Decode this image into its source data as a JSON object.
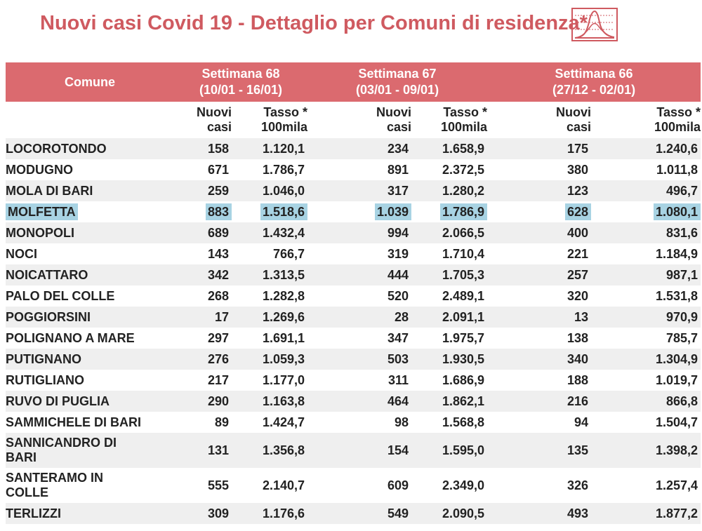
{
  "header": {
    "title": "Nuovi casi Covid 19 - Dettaglio per Comuni di residenza*",
    "icon": "epidemic-curve-chart-icon",
    "accent_color": "#db6a6f",
    "title_color": "#cf5a60"
  },
  "table": {
    "col_comune": "Comune",
    "weeks": [
      {
        "label": "Settimana 68",
        "range": "(10/01 - 16/01)"
      },
      {
        "label": "Settimana 67",
        "range": "(03/01 - 09/01)"
      },
      {
        "label": "Settimana 66",
        "range": "(27/12 - 02/01)"
      }
    ],
    "sub_headers": {
      "nuovi_1": "Nuovi",
      "nuovi_2": "casi",
      "tasso_1": "Tasso *",
      "tasso_2": "100mila"
    },
    "highlight_color": "#a8d3e3",
    "rows": [
      {
        "comune": "LOCOROTONDO",
        "w68_casi": "158",
        "w68_tasso": "1.120,1",
        "w67_casi": "234",
        "w67_tasso": "1.658,9",
        "w66_casi": "175",
        "w66_tasso": "1.240,6"
      },
      {
        "comune": "MODUGNO",
        "w68_casi": "671",
        "w68_tasso": "1.786,7",
        "w67_casi": "891",
        "w67_tasso": "2.372,5",
        "w66_casi": "380",
        "w66_tasso": "1.011,8"
      },
      {
        "comune": "MOLA DI BARI",
        "w68_casi": "259",
        "w68_tasso": "1.046,0",
        "w67_casi": "317",
        "w67_tasso": "1.280,2",
        "w66_casi": "123",
        "w66_tasso": "496,7"
      },
      {
        "comune": "MOLFETTA",
        "w68_casi": "883",
        "w68_tasso": "1.518,6",
        "w67_casi": "1.039",
        "w67_tasso": "1.786,9",
        "w66_casi": "628",
        "w66_tasso": "1.080,1",
        "highlighted": true
      },
      {
        "comune": "MONOPOLI",
        "w68_casi": "689",
        "w68_tasso": "1.432,4",
        "w67_casi": "994",
        "w67_tasso": "2.066,5",
        "w66_casi": "400",
        "w66_tasso": "831,6"
      },
      {
        "comune": "NOCI",
        "w68_casi": "143",
        "w68_tasso": "766,7",
        "w67_casi": "319",
        "w67_tasso": "1.710,4",
        "w66_casi": "221",
        "w66_tasso": "1.184,9"
      },
      {
        "comune": "NOICATTARO",
        "w68_casi": "342",
        "w68_tasso": "1.313,5",
        "w67_casi": "444",
        "w67_tasso": "1.705,3",
        "w66_casi": "257",
        "w66_tasso": "987,1"
      },
      {
        "comune": "PALO DEL COLLE",
        "w68_casi": "268",
        "w68_tasso": "1.282,8",
        "w67_casi": "520",
        "w67_tasso": "2.489,1",
        "w66_casi": "320",
        "w66_tasso": "1.531,8"
      },
      {
        "comune": "POGGIORSINI",
        "w68_casi": "17",
        "w68_tasso": "1.269,6",
        "w67_casi": "28",
        "w67_tasso": "2.091,1",
        "w66_casi": "13",
        "w66_tasso": "970,9"
      },
      {
        "comune": "POLIGNANO A MARE",
        "w68_casi": "297",
        "w68_tasso": "1.691,1",
        "w67_casi": "347",
        "w67_tasso": "1.975,7",
        "w66_casi": "138",
        "w66_tasso": "785,7"
      },
      {
        "comune": "PUTIGNANO",
        "w68_casi": "276",
        "w68_tasso": "1.059,3",
        "w67_casi": "503",
        "w67_tasso": "1.930,5",
        "w66_casi": "340",
        "w66_tasso": "1.304,9"
      },
      {
        "comune": "RUTIGLIANO",
        "w68_casi": "217",
        "w68_tasso": "1.177,0",
        "w67_casi": "311",
        "w67_tasso": "1.686,9",
        "w66_casi": "188",
        "w66_tasso": "1.019,7"
      },
      {
        "comune": "RUVO DI PUGLIA",
        "w68_casi": "290",
        "w68_tasso": "1.163,8",
        "w67_casi": "464",
        "w67_tasso": "1.862,1",
        "w66_casi": "216",
        "w66_tasso": "866,8"
      },
      {
        "comune": "SAMMICHELE DI BARI",
        "w68_casi": "89",
        "w68_tasso": "1.424,7",
        "w67_casi": "98",
        "w67_tasso": "1.568,8",
        "w66_casi": "94",
        "w66_tasso": "1.504,7"
      },
      {
        "comune": "SANNICANDRO DI BARI",
        "w68_casi": "131",
        "w68_tasso": "1.356,8",
        "w67_casi": "154",
        "w67_tasso": "1.595,0",
        "w66_casi": "135",
        "w66_tasso": "1.398,2",
        "wrap": true
      },
      {
        "comune": "SANTERAMO IN COLLE",
        "w68_casi": "555",
        "w68_tasso": "2.140,7",
        "w67_casi": "609",
        "w67_tasso": "2.349,0",
        "w66_casi": "326",
        "w66_tasso": "1.257,4",
        "wrap": true
      },
      {
        "comune": "TERLIZZI",
        "w68_casi": "309",
        "w68_tasso": "1.176,6",
        "w67_casi": "549",
        "w67_tasso": "2.090,5",
        "w66_casi": "493",
        "w66_tasso": "1.877,2"
      }
    ]
  }
}
